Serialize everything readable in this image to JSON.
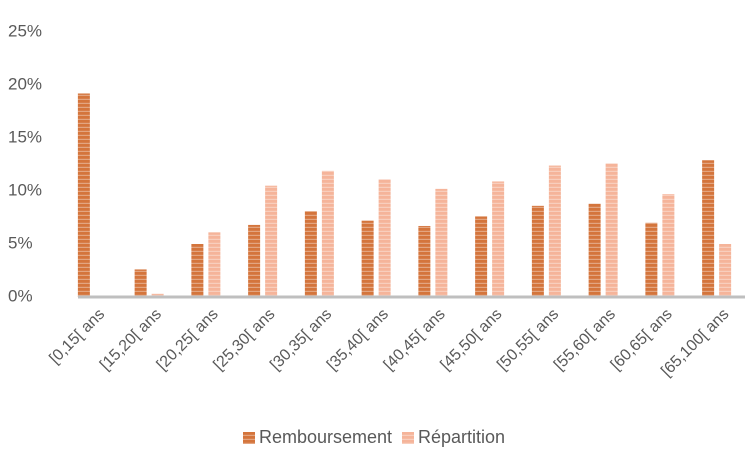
{
  "chart_data": {
    "type": "bar",
    "categories": [
      "[0,15[ ans",
      "[15,20[ ans",
      "[20,25[ ans",
      "[25,30[ ans",
      "[30,35[ ans",
      "[35,40[ ans",
      "[40,45[ ans",
      "[45,50[ ans",
      "[50,55[ ans",
      "[55,60[ ans",
      "[60,65[ ans",
      "[65,100[ ans"
    ],
    "series": [
      {
        "name": "Remboursement",
        "color": "#d4753c",
        "values": [
          19.2,
          2.6,
          5.0,
          6.8,
          8.1,
          7.2,
          6.7,
          7.6,
          8.6,
          8.8,
          7.0,
          12.9
        ]
      },
      {
        "name": "Répartition",
        "color": "#f5b49a",
        "values": [
          0,
          0.3,
          6.1,
          10.5,
          11.9,
          11.1,
          10.2,
          10.9,
          12.4,
          12.6,
          9.7,
          5.0
        ]
      }
    ],
    "ylim": [
      0,
      25
    ],
    "yticks": [
      {
        "value": 0,
        "label": "0%"
      },
      {
        "value": 5,
        "label": "5%"
      },
      {
        "value": 10,
        "label": "10%"
      },
      {
        "value": 15,
        "label": "15%"
      },
      {
        "value": 20,
        "label": "20%"
      },
      {
        "value": 25,
        "label": "25%"
      }
    ],
    "grid": false,
    "legend": "bottom"
  }
}
